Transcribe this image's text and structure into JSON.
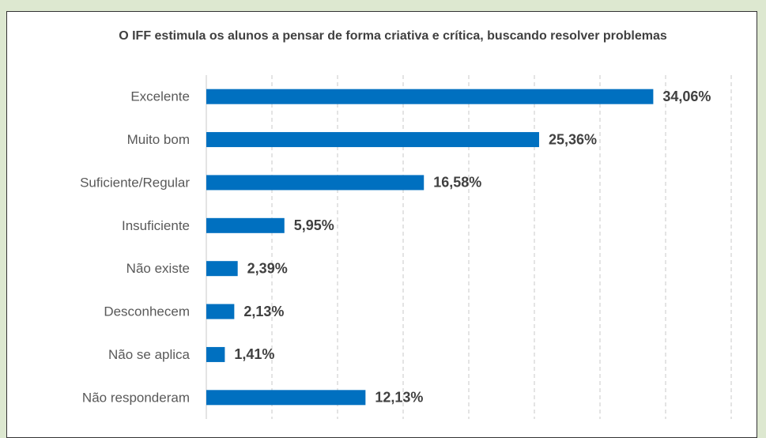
{
  "chart_data": {
    "type": "bar",
    "orientation": "horizontal",
    "title": "O IFF estimula os alunos a pensar de forma criativa e crítica, buscando resolver problemas",
    "categories": [
      "Excelente",
      "Muito bom",
      "Suficiente/Regular",
      "Insuficiente",
      "Não existe",
      "Desconhecem",
      "Não se aplica",
      "Não responderam"
    ],
    "values": [
      34.06,
      25.36,
      16.58,
      5.95,
      2.39,
      2.13,
      1.41,
      12.13
    ],
    "value_labels": [
      "34,06%",
      "25,36%",
      "16,58%",
      "5,95%",
      "2,39%",
      "2,13%",
      "1,41%",
      "12,13%"
    ],
    "color": "#0070c0",
    "xlim": [
      0,
      40
    ],
    "xticks": [
      0,
      5,
      10,
      15,
      20,
      25,
      30,
      35,
      40
    ],
    "grid": true
  }
}
